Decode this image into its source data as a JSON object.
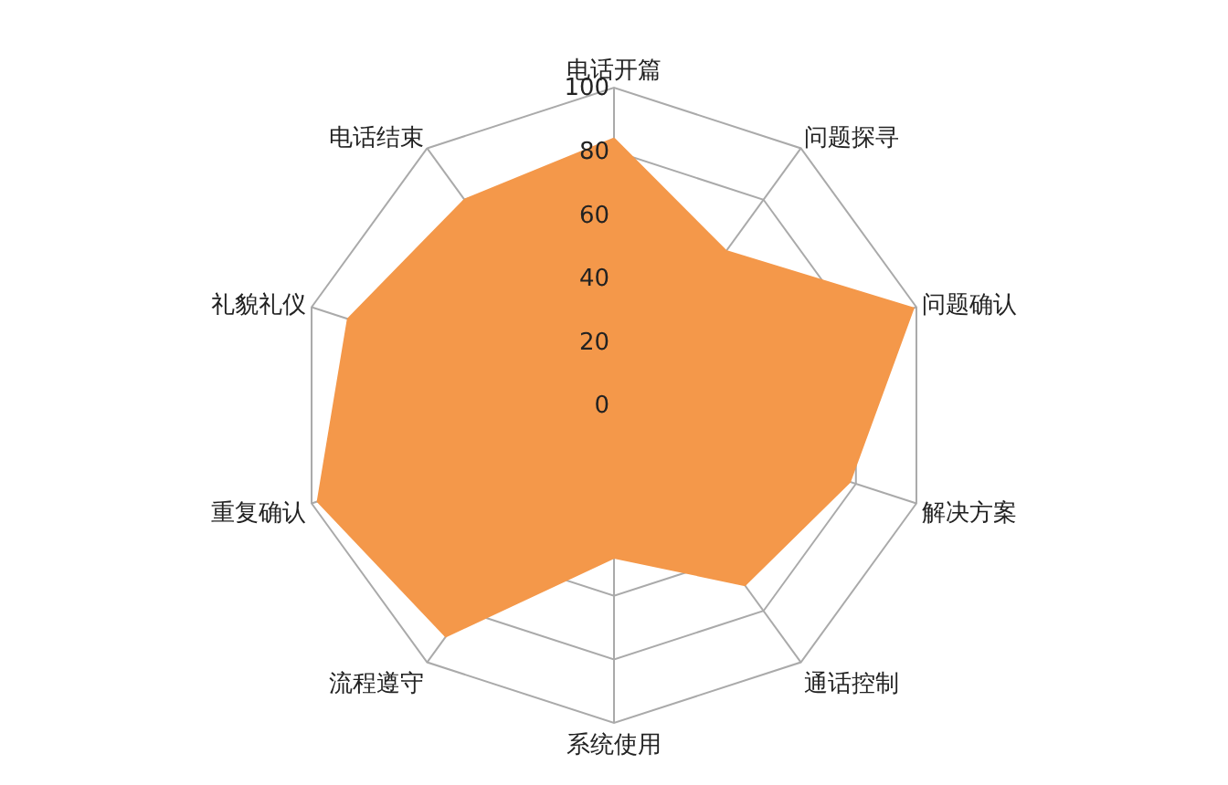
{
  "chart_data": {
    "type": "radar",
    "categories": [
      "电话开篇",
      "问题探寻",
      "问题确认",
      "解决方案",
      "通话控制",
      "系统使用",
      "流程遵守",
      "重复确认",
      "礼貌礼仪",
      "电话结束"
    ],
    "series": [
      {
        "color": "#f4984a",
        "values": [
          84,
          60,
          99,
          78,
          70,
          48,
          90,
          98,
          88,
          80
        ]
      }
    ],
    "ylim": [
      0,
      100
    ],
    "yticks": [
      0,
      20,
      40,
      60,
      80,
      100
    ],
    "grid": true
  }
}
